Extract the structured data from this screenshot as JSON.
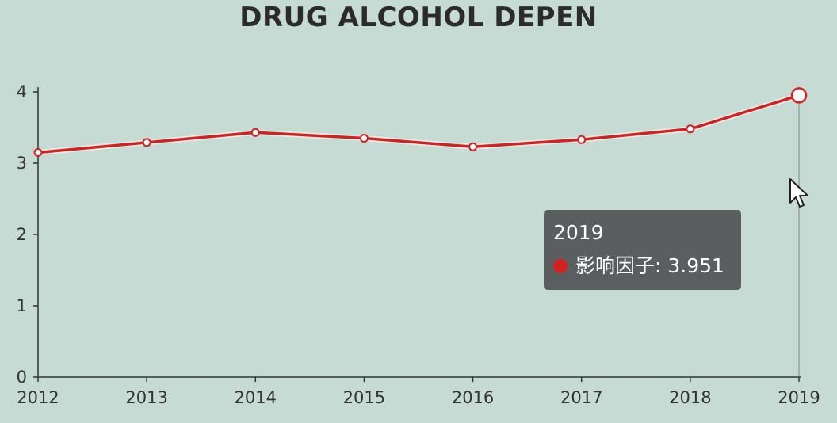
{
  "chart_data": {
    "type": "line",
    "title": "DRUG ALCOHOL DEPEN",
    "categories": [
      "2012",
      "2013",
      "2014",
      "2015",
      "2016",
      "2017",
      "2018",
      "2019"
    ],
    "series": [
      {
        "name": "影响因子",
        "values": [
          3.15,
          3.29,
          3.43,
          3.35,
          3.23,
          3.33,
          3.48,
          3.951
        ],
        "color": "#d42020"
      }
    ],
    "yticks": [
      "0",
      "1",
      "2",
      "3",
      "4"
    ],
    "ylim": [
      0,
      4
    ],
    "grid": false,
    "legend": "none",
    "tooltip": {
      "title": "2019",
      "series_name": "影响因子",
      "value": "3.951",
      "separator": ": "
    }
  },
  "colors": {
    "background": "#c6dbd3",
    "line": "#d42020",
    "axis": "#333333"
  }
}
